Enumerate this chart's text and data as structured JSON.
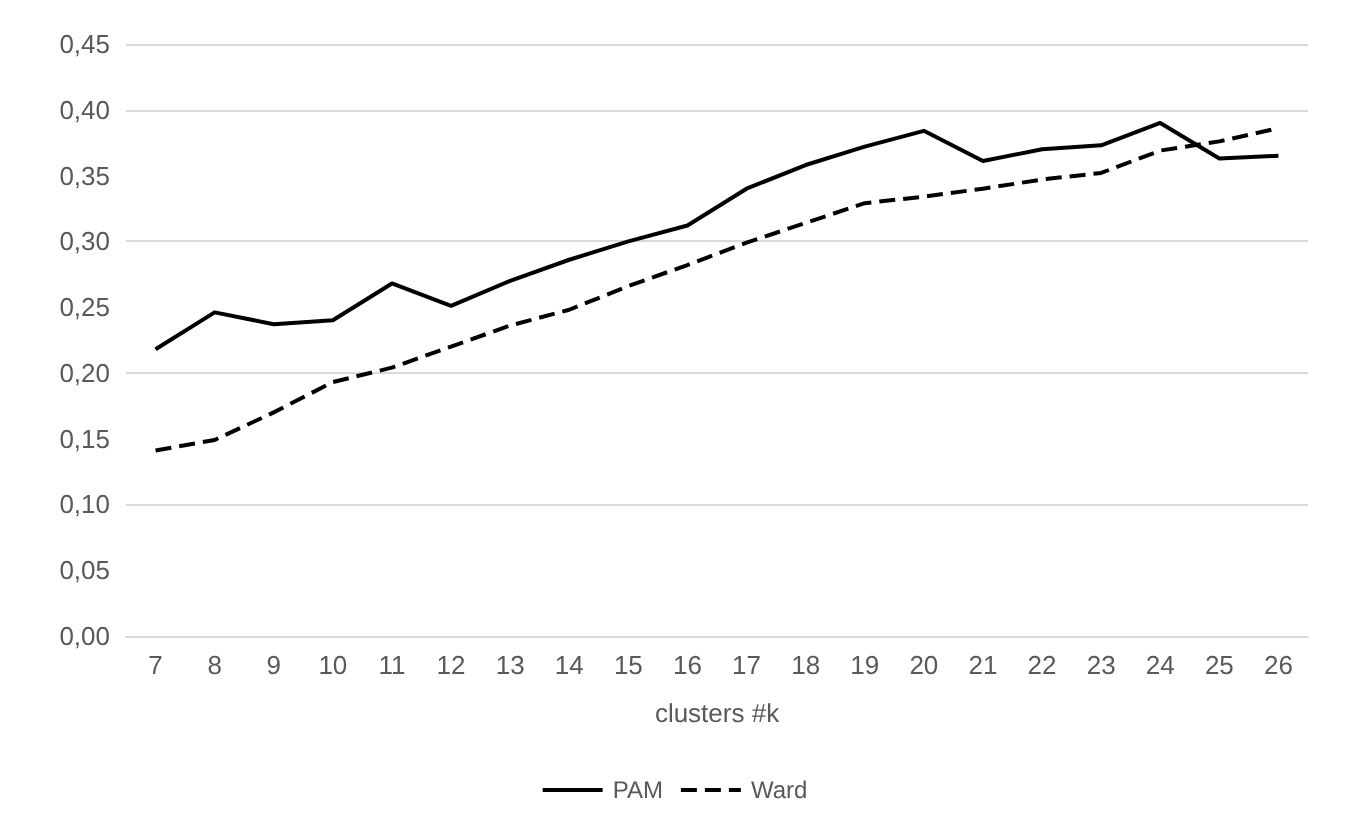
{
  "chart_data": {
    "type": "line",
    "xlabel": "clusters #k",
    "categories": [
      "7",
      "8",
      "9",
      "10",
      "11",
      "12",
      "13",
      "14",
      "15",
      "16",
      "17",
      "18",
      "19",
      "20",
      "21",
      "22",
      "23",
      "24",
      "25",
      "26"
    ],
    "series": [
      {
        "name": "PAM",
        "color": "#000000",
        "line_style": "solid",
        "values": [
          0.218,
          0.246,
          0.237,
          0.24,
          0.268,
          0.251,
          0.27,
          0.286,
          0.3,
          0.312,
          0.34,
          0.358,
          0.372,
          0.384,
          0.361,
          0.37,
          0.373,
          0.39,
          0.363,
          0.365
        ]
      },
      {
        "name": "Ward",
        "color": "#000000",
        "line_style": "dashed",
        "values": [
          0.141,
          0.149,
          0.17,
          0.193,
          0.204,
          0.22,
          0.236,
          0.248,
          0.266,
          0.282,
          0.299,
          0.314,
          0.329,
          0.334,
          0.34,
          0.347,
          0.352,
          0.369,
          0.376,
          0.386
        ]
      }
    ],
    "ylim": [
      0,
      0.45
    ],
    "yticks": [
      {
        "value": 0,
        "label": "0,00"
      },
      {
        "value": 0.05,
        "label": "0,05"
      },
      {
        "value": 0.1,
        "label": "0,10"
      },
      {
        "value": 0.15,
        "label": "0,15"
      },
      {
        "value": 0.2,
        "label": "0,20"
      },
      {
        "value": 0.25,
        "label": "0,25"
      },
      {
        "value": 0.3,
        "label": "0,30"
      },
      {
        "value": 0.35,
        "label": "0,35"
      },
      {
        "value": 0.4,
        "label": "0,40"
      },
      {
        "value": 0.45,
        "label": "0,45"
      }
    ],
    "grid": "y",
    "legend": "bottom",
    "marker": "none"
  }
}
